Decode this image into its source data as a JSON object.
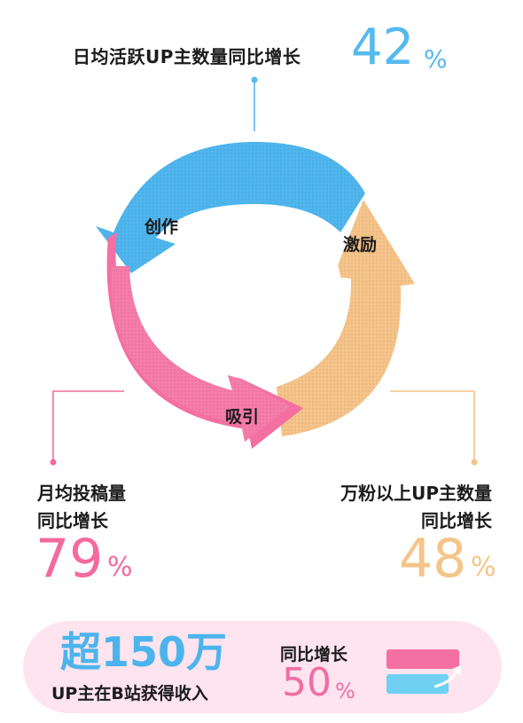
{
  "colors": {
    "blue": "#56b9ef",
    "pink": "#f46a9e",
    "orange": "#f5c488",
    "card_bg": "#fde4ef"
  },
  "cycle": {
    "create": "创作",
    "incentive": "激励",
    "attract": "吸引"
  },
  "top_stat": {
    "label": "日均活跃UP主数量同比增长",
    "value": "42",
    "unit": "%"
  },
  "left_stat": {
    "label_line1": "月均投稿量",
    "label_line2": "同比增长",
    "value": "79",
    "unit": "%"
  },
  "right_stat": {
    "label_line1": "万粉以上UP主数量",
    "label_line2": "同比增长",
    "value": "48",
    "unit": "%"
  },
  "bottom": {
    "headline": "超150万",
    "subtitle": "UP主在B站获得收入",
    "yoy_label": "同比增长",
    "yoy_value": "50",
    "yoy_unit": "%",
    "icon": "growth-bars-icon"
  }
}
